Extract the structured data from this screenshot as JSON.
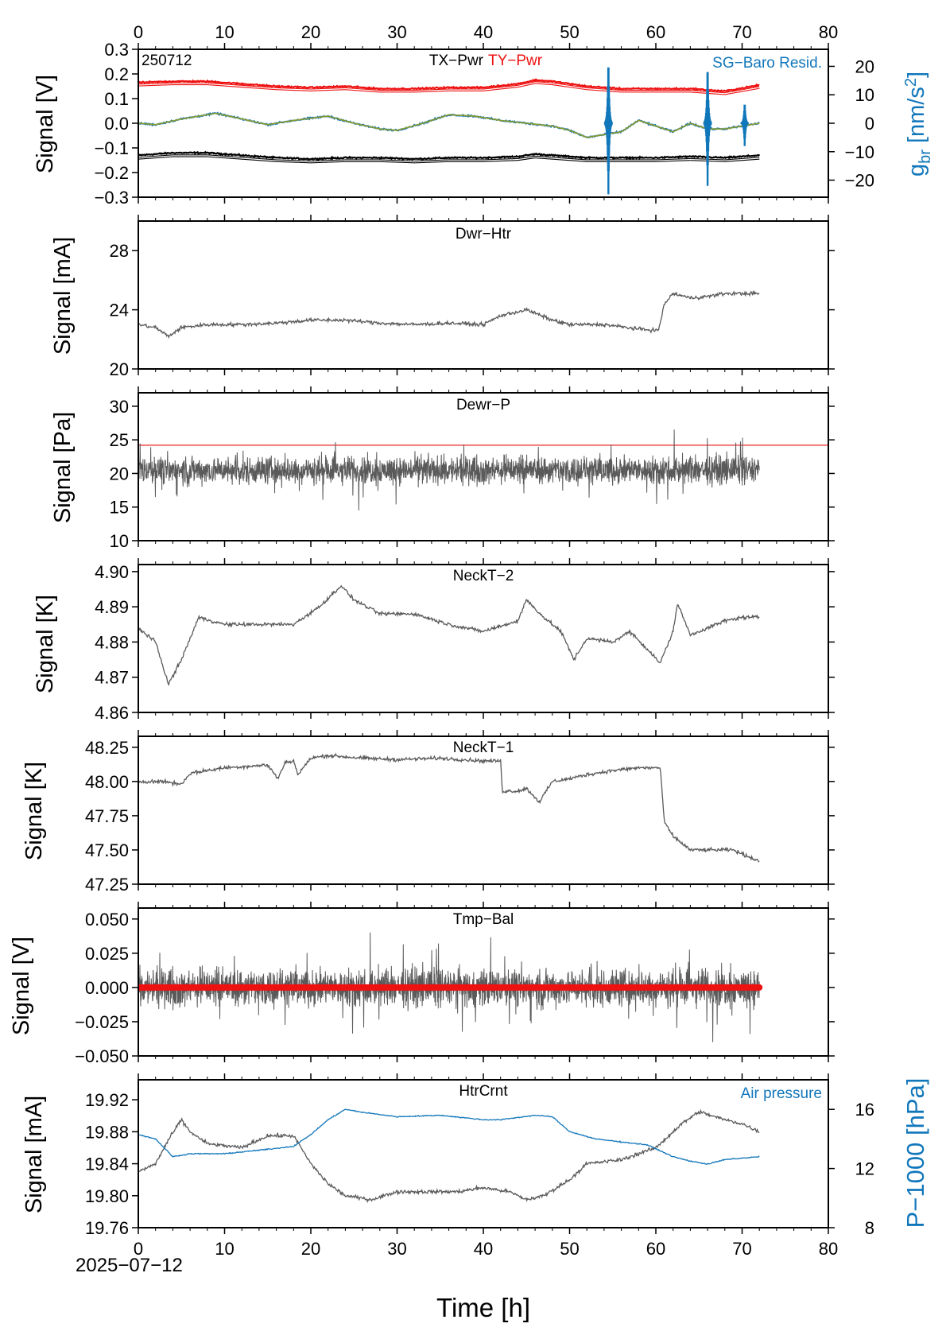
{
  "figure": {
    "id_label": "250712",
    "date_label": "2025−07−12",
    "x_axis_label": "Time [h]"
  },
  "chart_data": [
    {
      "type": "line",
      "panel": "TX-Pwr / TY-Pwr / SG-Baro Resid.",
      "ylabel": "Signal [V]",
      "ylim": [
        -0.3,
        0.3
      ],
      "yticks": [
        "0.3",
        "0.2",
        "0.1",
        "0.0",
        "−0.1",
        "−0.2",
        "−0.3"
      ],
      "ylabel_right": "g_br [nm/s^2]",
      "ylim_right": [
        -26,
        26
      ],
      "yticks_right": [
        "20",
        "10",
        "0",
        "−10",
        "−20"
      ],
      "xlim": [
        0,
        80
      ],
      "xticks": [
        "0",
        "10",
        "20",
        "30",
        "40",
        "50",
        "60",
        "70",
        "80"
      ],
      "series": [
        {
          "name": "TX−Pwr",
          "color": "#000000",
          "axis": "left",
          "x": [
            0,
            4,
            8,
            12,
            16,
            20,
            24,
            28,
            32,
            36,
            40,
            44,
            46,
            48,
            52,
            56,
            60,
            64,
            68,
            72
          ],
          "values": [
            -0.13,
            -0.12,
            -0.12,
            -0.13,
            -0.14,
            -0.145,
            -0.14,
            -0.14,
            -0.145,
            -0.14,
            -0.14,
            -0.135,
            -0.125,
            -0.13,
            -0.14,
            -0.14,
            -0.14,
            -0.135,
            -0.14,
            -0.13
          ]
        },
        {
          "name": "TY−Pwr",
          "color": "#ee1111",
          "axis": "left",
          "x": [
            0,
            4,
            8,
            12,
            16,
            20,
            24,
            28,
            32,
            36,
            40,
            44,
            46,
            48,
            52,
            56,
            60,
            64,
            68,
            72
          ],
          "values": [
            0.165,
            0.17,
            0.17,
            0.16,
            0.15,
            0.145,
            0.15,
            0.14,
            0.14,
            0.145,
            0.145,
            0.16,
            0.175,
            0.17,
            0.15,
            0.14,
            0.14,
            0.14,
            0.13,
            0.155
          ]
        },
        {
          "name": "SG−Baro Resid.",
          "color": "#1177bb",
          "axis": "right",
          "x": [
            0,
            2,
            5,
            9,
            12,
            15,
            18,
            22,
            25,
            28,
            30,
            33,
            36,
            39,
            42,
            45,
            48,
            50,
            52,
            54,
            56,
            58,
            60,
            62,
            64,
            66,
            68,
            70,
            72
          ],
          "values": [
            0,
            -0.5,
            1.5,
            3.5,
            1.5,
            -0.5,
            1,
            2.5,
            0,
            -2,
            -2.5,
            0,
            3,
            2.5,
            1,
            0,
            -1,
            -2.5,
            -5,
            -4,
            -3,
            1,
            -1,
            -3,
            0,
            -2,
            -2,
            -1,
            0
          ]
        },
        {
          "name": "",
          "color": "#8a9a2a",
          "axis": "right",
          "x": [
            0,
            2,
            5,
            9,
            12,
            15,
            18,
            22,
            25,
            28,
            30,
            33,
            36,
            39,
            42,
            45,
            48,
            50,
            52,
            54,
            56,
            58,
            60,
            62,
            64,
            66,
            68,
            70,
            72
          ],
          "values": [
            0,
            -0.5,
            1.5,
            3.5,
            1.5,
            -0.5,
            1,
            2.5,
            0,
            -2,
            -2.5,
            0,
            3,
            2.5,
            1,
            0,
            -1,
            -2.5,
            -5,
            -4,
            -3,
            1,
            -1,
            -3,
            0,
            -2,
            -2,
            -1,
            0
          ]
        }
      ],
      "spikes": [
        {
          "x": 54.5,
          "min": -25,
          "max": 24
        },
        {
          "x": 66,
          "min": -22,
          "max": 22
        },
        {
          "x": 70.3,
          "min": -8,
          "max": 8
        }
      ]
    },
    {
      "type": "line",
      "panel": "Dwr−Htr",
      "ylabel": "Signal [mA]",
      "ylim": [
        20,
        30
      ],
      "yticks": [
        "28",
        "24",
        "20"
      ],
      "xlim": [
        0,
        80
      ],
      "series": [
        {
          "name": "",
          "color": "#5a5a5a",
          "x": [
            0,
            2,
            3.5,
            5,
            8,
            12,
            16,
            20,
            24,
            28,
            32,
            36,
            40,
            42,
            45,
            48,
            50,
            54,
            58,
            60.3,
            61,
            62,
            64,
            66,
            68,
            70,
            72
          ],
          "values": [
            23.0,
            22.8,
            22.2,
            22.8,
            23.0,
            23.0,
            23.1,
            23.3,
            23.3,
            23.1,
            23.0,
            23.1,
            23.0,
            23.6,
            24.0,
            23.3,
            23.0,
            23.0,
            22.7,
            22.6,
            24.4,
            25.1,
            24.8,
            24.9,
            25.1,
            25.1,
            25.1
          ]
        }
      ]
    },
    {
      "type": "line",
      "panel": "Dewr−P",
      "ylabel": "Signal [Pa]",
      "ylim": [
        10,
        32
      ],
      "yticks": [
        "30",
        "25",
        "20",
        "15",
        "10"
      ],
      "xlim": [
        0,
        80
      ],
      "series": [
        {
          "name": "",
          "color": "#5a5a5a",
          "x": [
            0,
            72
          ],
          "values": [
            20.5,
            20.5
          ],
          "noise": 3.0
        }
      ],
      "threshold": {
        "value": 24.2,
        "color": "#ee1111"
      }
    },
    {
      "type": "line",
      "panel": "NeckT−2",
      "ylabel": "Signal [K]",
      "ylim": [
        4.86,
        4.902
      ],
      "yticks": [
        "4.90",
        "4.89",
        "4.88",
        "4.87",
        "4.86"
      ],
      "xlim": [
        0,
        80
      ],
      "series": [
        {
          "name": "",
          "color": "#5a5a5a",
          "x": [
            0,
            2,
            3.5,
            5,
            7,
            10,
            14,
            18,
            21,
            23.5,
            25,
            28,
            32,
            36,
            40,
            44,
            45,
            47,
            49,
            50.5,
            52,
            55,
            57,
            59,
            60.5,
            62,
            62.5,
            64,
            66,
            68,
            70,
            72
          ],
          "values": [
            4.884,
            4.88,
            4.868,
            4.875,
            4.887,
            4.885,
            4.885,
            4.885,
            4.89,
            4.896,
            4.892,
            4.888,
            4.888,
            4.885,
            4.883,
            4.886,
            4.892,
            4.887,
            4.883,
            4.875,
            4.881,
            4.88,
            4.883,
            4.878,
            4.874,
            4.883,
            4.891,
            4.882,
            4.884,
            4.886,
            4.887,
            4.887
          ]
        }
      ]
    },
    {
      "type": "line",
      "panel": "NeckT−1",
      "ylabel": "Signal [K]",
      "ylim": [
        47.25,
        48.33
      ],
      "yticks": [
        "48.25",
        "48.00",
        "47.75",
        "47.50",
        "47.25"
      ],
      "xlim": [
        0,
        80
      ],
      "series": [
        {
          "name": "",
          "color": "#5a5a5a",
          "x": [
            0,
            3,
            5,
            6,
            10,
            15,
            16.2,
            17,
            18,
            18.5,
            20,
            22,
            26,
            30,
            35,
            40,
            42,
            42.2,
            44,
            45,
            46.5,
            48,
            50,
            52,
            55,
            58,
            60.5,
            61,
            62,
            64,
            66,
            68,
            69,
            70,
            72
          ],
          "values": [
            48.0,
            48.0,
            47.98,
            48.06,
            48.1,
            48.12,
            48.02,
            48.14,
            48.15,
            48.05,
            48.17,
            48.19,
            48.17,
            48.16,
            48.17,
            48.15,
            48.15,
            47.93,
            47.93,
            47.95,
            47.85,
            48.0,
            48.02,
            48.05,
            48.08,
            48.1,
            48.1,
            47.7,
            47.6,
            47.5,
            47.5,
            47.5,
            47.5,
            47.47,
            47.42
          ]
        }
      ]
    },
    {
      "type": "line",
      "panel": "Tmp−Bal",
      "ylabel": "Signal [V]",
      "ylim": [
        -0.05,
        0.058
      ],
      "yticks": [
        "0.050",
        "0.025",
        "0.000",
        "−0.025",
        "−0.050"
      ],
      "xlim": [
        0,
        80
      ],
      "series": [
        {
          "name": "",
          "color": "#5a5a5a",
          "x": [
            0,
            72
          ],
          "values": [
            0.0,
            0.0
          ],
          "noise": 0.02
        },
        {
          "name": "",
          "color": "#ee1111",
          "x": [
            0,
            72
          ],
          "values": [
            0.0,
            0.0
          ]
        }
      ]
    },
    {
      "type": "line",
      "panel": "HtrCrnt / Air pressure",
      "ylabel": "Signal [mA]",
      "ylim": [
        19.76,
        19.945
      ],
      "yticks": [
        "19.92",
        "19.88",
        "19.84",
        "19.80",
        "19.76"
      ],
      "ylabel_right": "P−1000 [hPa]",
      "ylim_right": [
        8,
        18
      ],
      "yticks_right": [
        "16",
        "12",
        "8"
      ],
      "xlim": [
        0,
        80
      ],
      "xticks": [
        "0",
        "10",
        "20",
        "30",
        "40",
        "50",
        "60",
        "70",
        "80"
      ],
      "series": [
        {
          "name": "HtrCrnt",
          "color": "#5a5a5a",
          "axis": "left",
          "x": [
            0,
            2,
            3.5,
            5,
            6,
            8,
            12,
            15,
            18,
            20,
            22,
            24,
            27,
            30,
            33,
            37,
            40,
            43,
            45,
            47,
            50,
            52,
            56,
            60,
            63,
            65,
            68,
            70,
            72
          ],
          "values": [
            19.83,
            19.84,
            19.87,
            19.895,
            19.88,
            19.865,
            19.86,
            19.875,
            19.875,
            19.84,
            19.815,
            19.8,
            19.795,
            19.805,
            19.805,
            19.805,
            19.81,
            19.805,
            19.795,
            19.8,
            19.82,
            19.84,
            19.845,
            19.86,
            19.89,
            19.905,
            19.895,
            19.89,
            19.88
          ]
        },
        {
          "name": "Air pressure",
          "color": "#1177bb",
          "axis": "right",
          "x": [
            0,
            2,
            4,
            6,
            10,
            15,
            18,
            20,
            22,
            24,
            26,
            30,
            35,
            40,
            42,
            46,
            48,
            50,
            53,
            56,
            59,
            62,
            64,
            66,
            68,
            70,
            72
          ],
          "values": [
            14.3,
            14.0,
            12.8,
            13.0,
            13.0,
            13.3,
            13.5,
            14.3,
            15.3,
            16.0,
            15.8,
            15.5,
            15.6,
            15.3,
            15.3,
            15.6,
            15.5,
            14.5,
            14.0,
            13.8,
            13.6,
            12.8,
            12.5,
            12.3,
            12.6,
            12.7,
            12.8
          ]
        }
      ]
    }
  ]
}
